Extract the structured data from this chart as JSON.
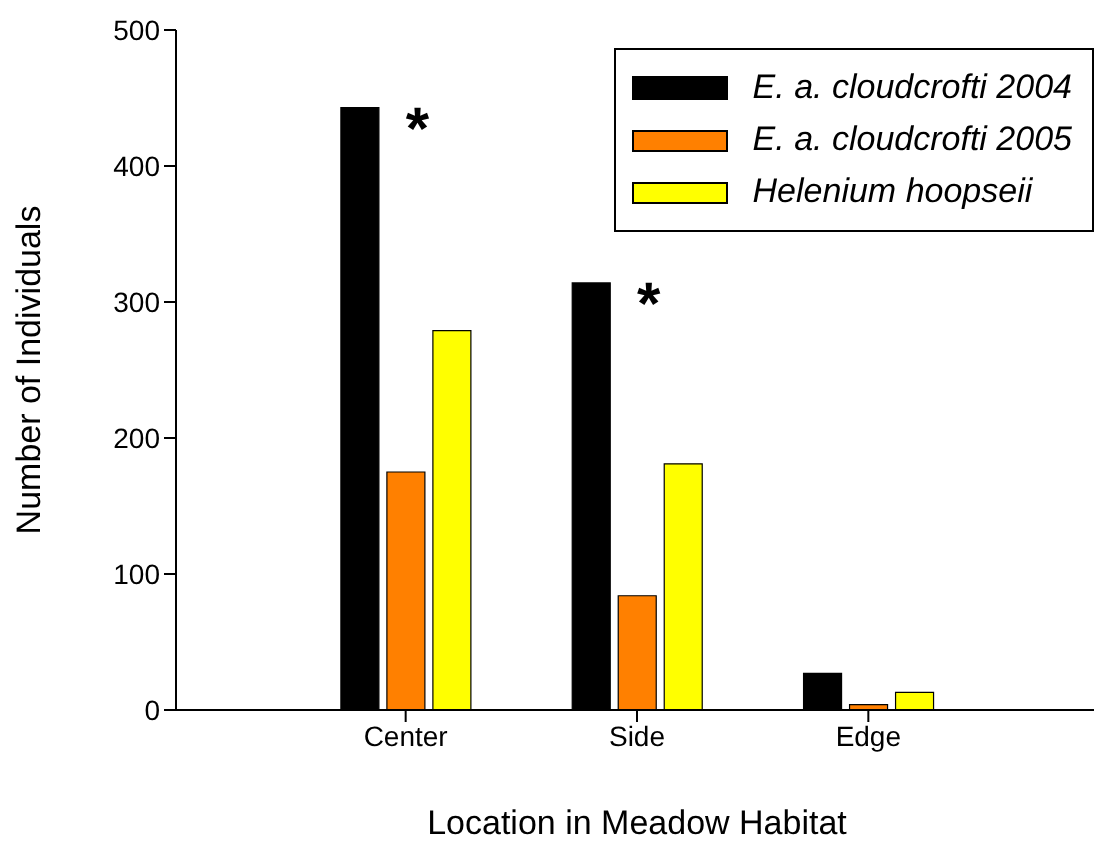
{
  "chart_data": {
    "type": "bar",
    "xlabel": "Location in Meadow Habitat",
    "ylabel": "Number of Individuals",
    "categories": [
      "Center",
      "Side",
      "Edge"
    ],
    "series": [
      {
        "name": "E. a. cloudcrofti 2004",
        "color": "#000000",
        "values": [
          443,
          314,
          27
        ]
      },
      {
        "name": "E. a. cloudcrofti 2005",
        "color": "#ff8000",
        "values": [
          175,
          84,
          4
        ]
      },
      {
        "name": "Helenium hoopseii",
        "color": "#ffff00",
        "values": [
          279,
          181,
          13
        ]
      }
    ],
    "ylim": [
      0,
      500
    ],
    "yticks": [
      0,
      100,
      200,
      300,
      400,
      500
    ],
    "grid": false,
    "legend": "top right",
    "annotations": [
      "*",
      "*"
    ]
  }
}
